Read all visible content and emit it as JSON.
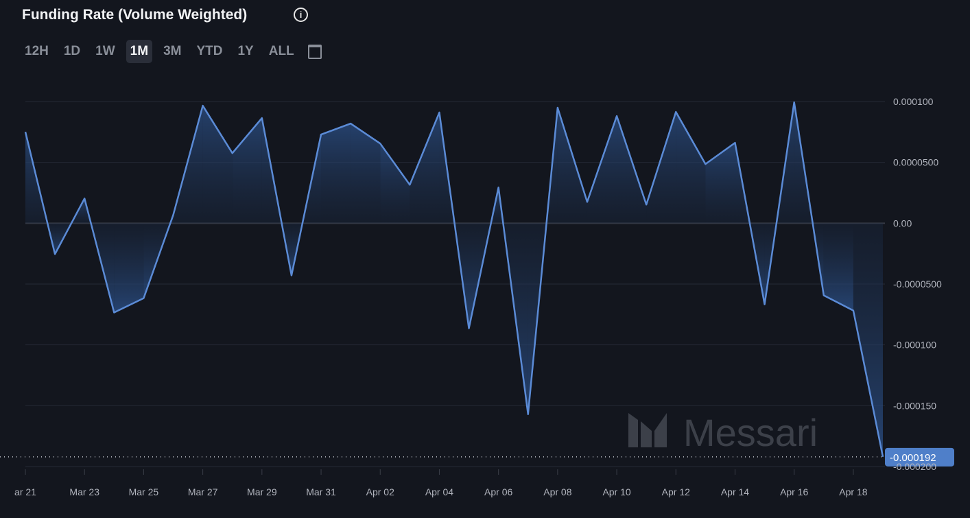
{
  "header": {
    "title": "Funding Rate (Volume Weighted)",
    "info_icon": "info-icon",
    "ranges": [
      "12H",
      "1D",
      "1W",
      "1M",
      "3M",
      "YTD",
      "1Y",
      "ALL"
    ],
    "active_range": "1M",
    "calendar_icon": "calendar-icon"
  },
  "watermark": "Messari",
  "chart_data": {
    "type": "area",
    "title": "Funding Rate (Volume Weighted)",
    "x": [
      "Mar 21",
      "Mar 22",
      "Mar 23",
      "Mar 24",
      "Mar 25",
      "Mar 26",
      "Mar 27",
      "Mar 28",
      "Mar 29",
      "Mar 30",
      "Mar 31",
      "Apr 01",
      "Apr 02",
      "Apr 03",
      "Apr 04",
      "Apr 05",
      "Apr 06",
      "Apr 07",
      "Apr 08",
      "Apr 09",
      "Apr 10",
      "Apr 11",
      "Apr 12",
      "Apr 13",
      "Apr 14",
      "Apr 15",
      "Apr 16",
      "Apr 17",
      "Apr 18",
      "Apr 19"
    ],
    "values": [
      7.51e-05,
      -2.54e-05,
      2.03e-05,
      -7.34e-05,
      -6.16e-05,
      6.8e-06,
      9.66e-05,
      5.76e-05,
      8.64e-05,
      -4.29e-05,
      7.29e-05,
      8.19e-05,
      6.55e-05,
      3.16e-05,
      9.1e-05,
      -8.64e-05,
      2.94e-05,
      -0.000157,
      9.49e-05,
      1.75e-05,
      8.81e-05,
      1.53e-05,
      9.15e-05,
      4.86e-05,
      6.61e-05,
      -6.67e-05,
      9.94e-05,
      -5.93e-05,
      -7.18e-05,
      -0.000192
    ],
    "ylim": [
      -0.0002,
      0.0001
    ],
    "yticks": [
      "0.000100",
      "0.0000500",
      "0.00",
      "-0.0000500",
      "-0.000100",
      "-0.000150",
      "-0.000200"
    ],
    "ytick_values": [
      0.0001,
      5e-05,
      0,
      -5e-05,
      -0.0001,
      -0.00015,
      -0.0002
    ],
    "xticks": [
      "ar 21",
      "Mar 23",
      "Mar 25",
      "Mar 27",
      "Mar 29",
      "Mar 31",
      "Apr 02",
      "Apr 04",
      "Apr 06",
      "Apr 08",
      "Apr 10",
      "Apr 12",
      "Apr 14",
      "Apr 16",
      "Apr 18"
    ],
    "last_value_label": "-0.000192",
    "line_color": "#5b8bd6",
    "grid": true
  }
}
